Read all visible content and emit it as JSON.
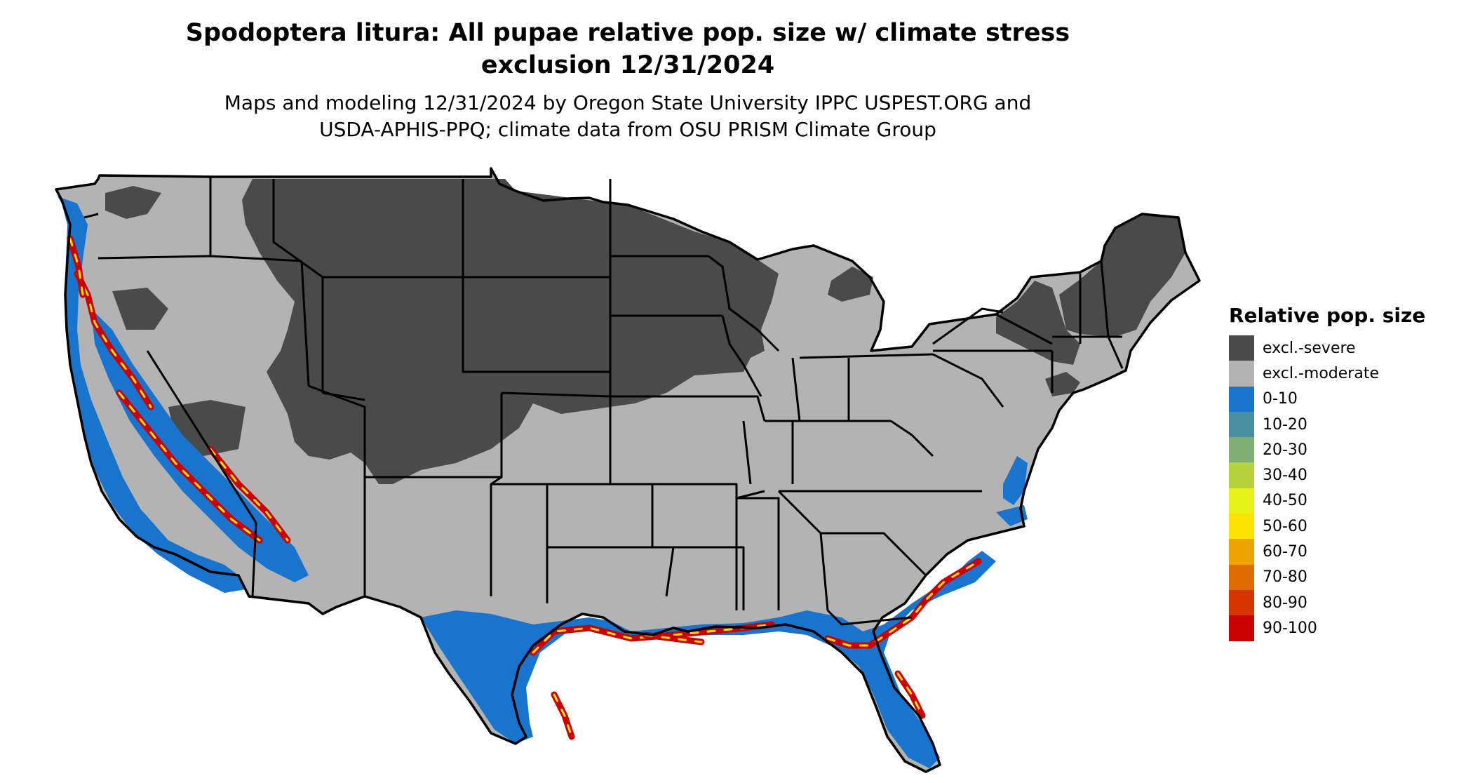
{
  "title": {
    "line1": "Spodoptera litura: All pupae relative pop. size w/ climate stress",
    "line2": "exclusion 12/31/2024"
  },
  "subtitle": {
    "line1": "Maps and modeling 12/31/2024 by Oregon State University IPPC USPEST.ORG and",
    "line2": "USDA-APHIS-PPQ; climate data from OSU PRISM Climate Group"
  },
  "legend": {
    "title": "Relative pop. size",
    "items": [
      {
        "label": "excl.-severe",
        "color": "#4a4a4a"
      },
      {
        "label": "excl.-moderate",
        "color": "#b3b3b3"
      },
      {
        "label": "0-10",
        "color": "#1874cd"
      },
      {
        "label": "10-20",
        "color": "#4a8fa0"
      },
      {
        "label": "20-30",
        "color": "#7fae72"
      },
      {
        "label": "30-40",
        "color": "#b5d23c"
      },
      {
        "label": "40-50",
        "color": "#e6f217"
      },
      {
        "label": "50-60",
        "color": "#ffe300"
      },
      {
        "label": "60-70",
        "color": "#eea300"
      },
      {
        "label": "70-80",
        "color": "#e06c00"
      },
      {
        "label": "80-90",
        "color": "#d63500"
      },
      {
        "label": "90-100",
        "color": "#cc0000"
      }
    ]
  },
  "map": {
    "colors": {
      "severe": "#4a4a4a",
      "moderate": "#b3b3b3",
      "low": "#1874cd",
      "high": "#cc0000",
      "mid": "#eea300",
      "yellow": "#ffe300",
      "border": "#000000"
    }
  }
}
